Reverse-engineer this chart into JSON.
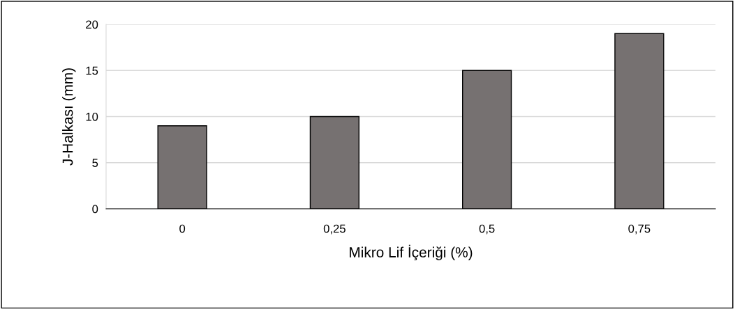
{
  "chart_data": {
    "type": "bar",
    "xlabel": "Mikro Lif İçeriği (%)",
    "ylabel": "J-Halkası (mm)",
    "categories": [
      "0",
      "0,25",
      "0,5",
      "0,75"
    ],
    "values": [
      9,
      10,
      15,
      19
    ],
    "color": "#767171",
    "ylim": [
      0,
      20
    ],
    "yticks": [
      0,
      5,
      10,
      15,
      20
    ],
    "grid": "y"
  }
}
